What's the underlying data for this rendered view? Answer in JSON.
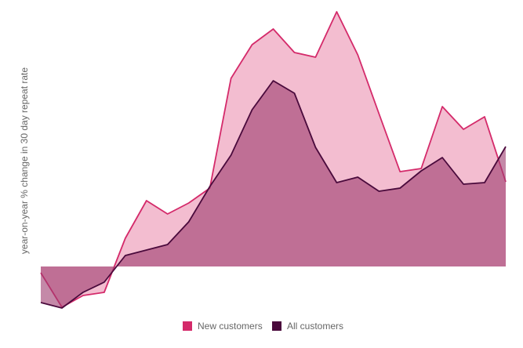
{
  "chart_data": {
    "type": "area",
    "y_label": "year-on-year % change in 30 day repeat rate",
    "categories": [
      null,
      null,
      null,
      null,
      null,
      null,
      null,
      null,
      null,
      null,
      null,
      null,
      null,
      null,
      null,
      null,
      null,
      null,
      null,
      null,
      null,
      null,
      null
    ],
    "series": [
      {
        "name": "New customers",
        "color": "#d42a6a",
        "fill": "#f2b9cd",
        "values": [
          -0.8,
          -5.2,
          -3.7,
          -3.3,
          3.6,
          8.4,
          6.7,
          8.1,
          10.0,
          24.0,
          28.3,
          30.3,
          27.3,
          26.7,
          32.5,
          27.0,
          19.5,
          12.1,
          12.5,
          20.4,
          17.5,
          19.1,
          10.8
        ]
      },
      {
        "name": "All customers",
        "color": "#4a0a3c",
        "fill": "#9c3a6e",
        "values": [
          -4.6,
          -5.3,
          -3.3,
          -2.0,
          1.4,
          2.1,
          2.8,
          5.7,
          10.2,
          14.2,
          20.0,
          23.7,
          22.1,
          15.2,
          10.7,
          11.4,
          9.6,
          10.0,
          12.2,
          13.9,
          10.5,
          10.7,
          15.3
        ]
      }
    ],
    "ylim": [
      -5.5,
      32.5
    ]
  }
}
